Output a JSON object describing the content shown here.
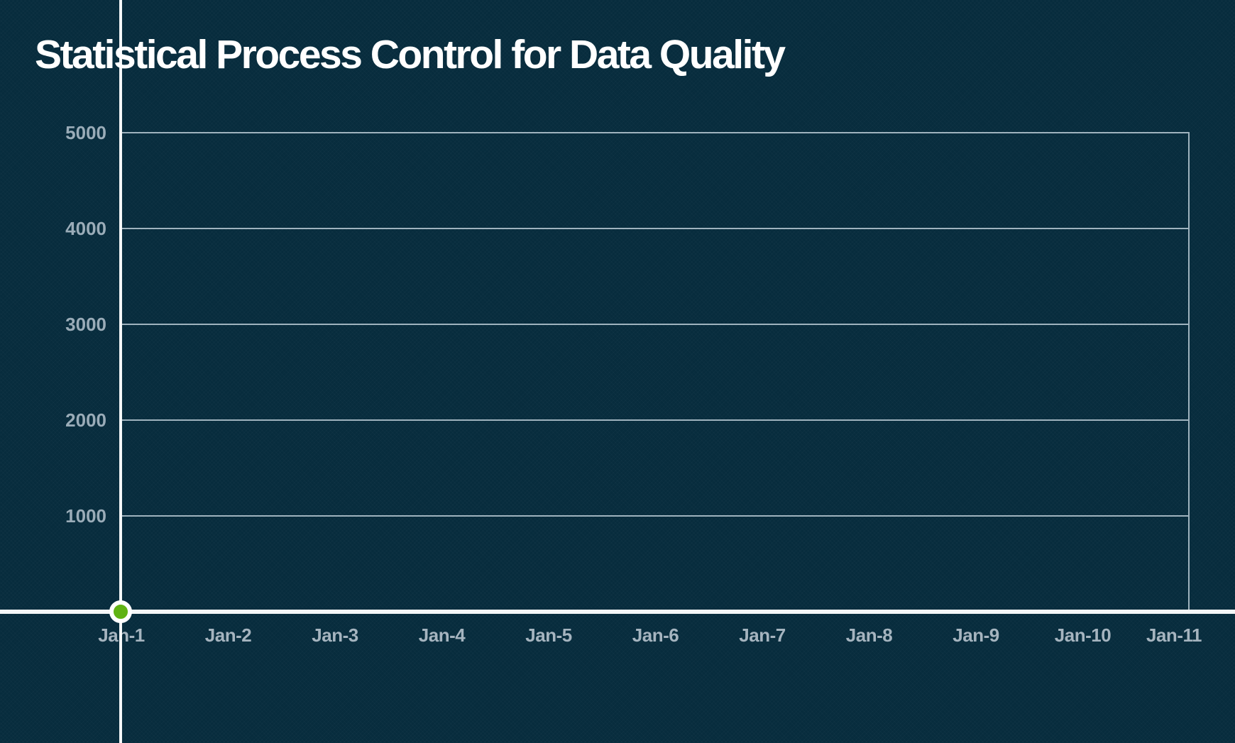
{
  "colors": {
    "background": "#072c3d",
    "title": "#ffffff",
    "axis": "#f4f7f8",
    "gridline": "#9fb3be",
    "y_tick_label": "#9aacb8",
    "x_tick_label": "#a5b4bf",
    "point_fill": "#60b313",
    "point_ring": "#ffffff"
  },
  "chart_data": {
    "type": "line",
    "title": "Statistical Process Control for Data Quality",
    "x_categories": [
      "Jan-1",
      "Jan-2",
      "Jan-3",
      "Jan-4",
      "Jan-5",
      "Jan-6",
      "Jan-7",
      "Jan-8",
      "Jan-9",
      "Jan-10",
      "Jan-11"
    ],
    "y_ticks": [
      1000,
      2000,
      3000,
      4000,
      5000
    ],
    "y_tick_labels": [
      "1000",
      "2000",
      "3000",
      "4000",
      "5000"
    ],
    "ylim": [
      0,
      5000
    ],
    "xlabel": "",
    "ylabel": "",
    "grid": "horizontal",
    "legend_position": "none",
    "series": [
      {
        "name": "series_1",
        "color": "#60b313",
        "marker": "circle-with-white-ring",
        "points": [
          {
            "x": "Jan-1",
            "y": 0
          }
        ]
      }
    ]
  }
}
